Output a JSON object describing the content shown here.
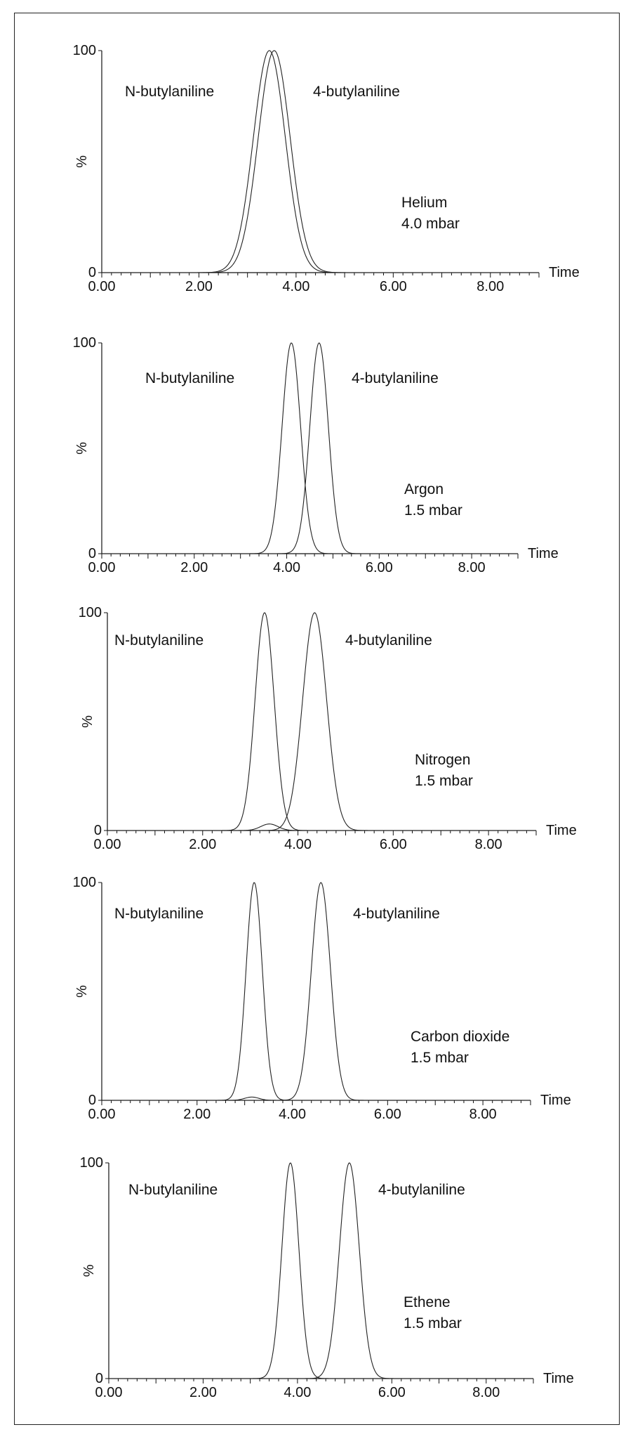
{
  "chart_data": [
    {
      "type": "line",
      "xlabel": "Time",
      "ylabel": "%",
      "xlim": [
        0,
        9
      ],
      "ylim": [
        0,
        100
      ],
      "x_ticks": [
        "0.00",
        "2.00",
        "4.00",
        "6.00",
        "8.00"
      ],
      "y_ticks": [
        "0",
        "100"
      ],
      "peak_labels": [
        "N-butylaniline",
        "4-butylaniline"
      ],
      "gas": "Helium",
      "pressure": "4.0 mbar",
      "series": [
        {
          "center": 3.45,
          "sigma": 0.33,
          "height": 100
        },
        {
          "center": 3.55,
          "sigma": 0.33,
          "height": 100
        }
      ]
    },
    {
      "type": "line",
      "xlabel": "Time",
      "ylabel": "%",
      "xlim": [
        0,
        9
      ],
      "ylim": [
        0,
        100
      ],
      "x_ticks": [
        "0.00",
        "2.00",
        "4.00",
        "6.00",
        "8.00"
      ],
      "y_ticks": [
        "0",
        "100"
      ],
      "peak_labels": [
        "N-butylaniline",
        "4-butylaniline"
      ],
      "gas": "Argon",
      "pressure": "1.5 mbar",
      "series": [
        {
          "center": 4.1,
          "sigma": 0.2,
          "height": 100
        },
        {
          "center": 4.7,
          "sigma": 0.2,
          "height": 100
        }
      ]
    },
    {
      "type": "line",
      "xlabel": "Time",
      "ylabel": "%",
      "xlim": [
        0,
        9
      ],
      "ylim": [
        0,
        100
      ],
      "x_ticks": [
        "0.00",
        "2.00",
        "4.00",
        "6.00",
        "8.00"
      ],
      "y_ticks": [
        "0",
        "100"
      ],
      "peak_labels": [
        "N-butylaniline",
        "4-butylaniline"
      ],
      "gas": "Nitrogen",
      "pressure": "1.5 mbar",
      "series": [
        {
          "center": 3.3,
          "sigma": 0.2,
          "height": 100
        },
        {
          "center": 4.35,
          "sigma": 0.25,
          "height": 100
        }
      ],
      "minor_peaks": [
        {
          "center": 3.4,
          "sigma": 0.18,
          "height": 3
        }
      ]
    },
    {
      "type": "line",
      "xlabel": "Time",
      "ylabel": "%",
      "xlim": [
        0,
        9
      ],
      "ylim": [
        0,
        100
      ],
      "x_ticks": [
        "0.00",
        "2.00",
        "4.00",
        "6.00",
        "8.00"
      ],
      "y_ticks": [
        "0",
        "100"
      ],
      "peak_labels": [
        "N-butylaniline",
        "4-butylaniline"
      ],
      "gas": "Carbon dioxide",
      "pressure": "1.5 mbar",
      "series": [
        {
          "center": 3.2,
          "sigma": 0.17,
          "height": 100
        },
        {
          "center": 4.6,
          "sigma": 0.2,
          "height": 100
        }
      ],
      "minor_peaks": [
        {
          "center": 3.15,
          "sigma": 0.15,
          "height": 1.5
        }
      ]
    },
    {
      "type": "line",
      "xlabel": "Time",
      "ylabel": "%",
      "xlim": [
        0,
        9
      ],
      "ylim": [
        0,
        100
      ],
      "x_ticks": [
        "0.00",
        "2.00",
        "4.00",
        "6.00",
        "8.00"
      ],
      "y_ticks": [
        "0",
        "100"
      ],
      "peak_labels": [
        "N-butylaniline",
        "4-butylaniline"
      ],
      "gas": "Ethene",
      "pressure": "1.5 mbar",
      "series": [
        {
          "center": 3.85,
          "sigma": 0.18,
          "height": 100
        },
        {
          "center": 5.1,
          "sigma": 0.21,
          "height": 100
        }
      ]
    }
  ]
}
